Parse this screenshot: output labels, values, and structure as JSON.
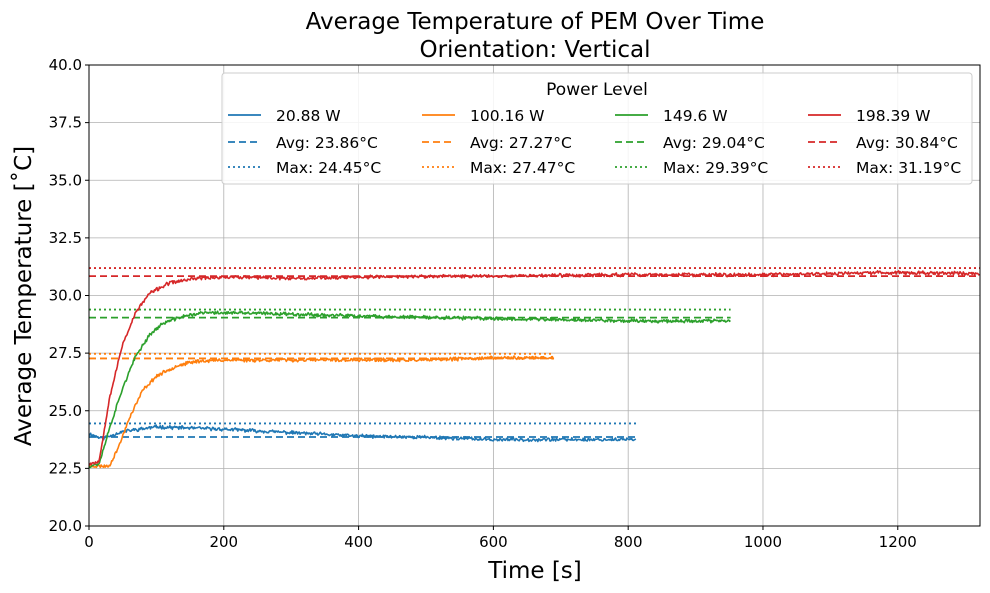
{
  "chart_data": {
    "type": "line",
    "title": "Average Temperature of PEM Over Time",
    "subtitle": "Orientation: Vertical",
    "xlabel": "Time [s]",
    "ylabel": "Average Temperature [˚C]",
    "xlim": [
      0,
      1322
    ],
    "ylim": [
      20.0,
      40.0
    ],
    "xticks": [
      0,
      200,
      400,
      600,
      800,
      1000,
      1200
    ],
    "xtick_labels": [
      "0",
      "200",
      "400",
      "600",
      "800",
      "1000",
      "1200"
    ],
    "yticks": [
      20.0,
      22.5,
      25.0,
      27.5,
      30.0,
      32.5,
      35.0,
      37.5,
      40.0
    ],
    "ytick_labels": [
      "20.0",
      "22.5",
      "25.0",
      "27.5",
      "30.0",
      "32.5",
      "35.0",
      "37.5",
      "40.0"
    ],
    "grid": true,
    "legend": {
      "title": "Power Level",
      "placement": "top-right",
      "columns": 4
    },
    "series": [
      {
        "name": "20.88 W",
        "color": "#1f77b4",
        "avg_label": "Avg: 23.86°C",
        "max_label": "Max: 24.45°C",
        "avg": 23.86,
        "max": 24.45,
        "end_time": 812,
        "noise": 0.06,
        "seed": 11,
        "curve": [
          [
            0,
            24.0
          ],
          [
            20,
            23.8
          ],
          [
            50,
            24.1
          ],
          [
            100,
            24.3
          ],
          [
            150,
            24.25
          ],
          [
            200,
            24.2
          ],
          [
            300,
            24.05
          ],
          [
            400,
            23.9
          ],
          [
            500,
            23.85
          ],
          [
            600,
            23.75
          ],
          [
            700,
            23.75
          ],
          [
            812,
            23.75
          ]
        ]
      },
      {
        "name": "100.16 W",
        "color": "#ff7f0e",
        "avg_label": "Avg: 27.27°C",
        "max_label": "Max: 27.47°C",
        "avg": 27.27,
        "max": 27.47,
        "end_time": 690,
        "noise": 0.06,
        "seed": 23,
        "curve": [
          [
            0,
            22.6
          ],
          [
            30,
            22.6
          ],
          [
            45,
            23.5
          ],
          [
            60,
            24.7
          ],
          [
            80,
            25.9
          ],
          [
            100,
            26.5
          ],
          [
            130,
            26.95
          ],
          [
            160,
            27.15
          ],
          [
            200,
            27.2
          ],
          [
            300,
            27.2
          ],
          [
            400,
            27.2
          ],
          [
            500,
            27.2
          ],
          [
            600,
            27.3
          ],
          [
            690,
            27.3
          ]
        ]
      },
      {
        "name": "149.6 W",
        "color": "#2ca02c",
        "avg_label": "Avg: 29.04°C",
        "max_label": "Max: 29.39°C",
        "avg": 29.04,
        "max": 29.39,
        "end_time": 952,
        "noise": 0.06,
        "seed": 37,
        "curve": [
          [
            0,
            22.6
          ],
          [
            15,
            22.7
          ],
          [
            30,
            24.2
          ],
          [
            50,
            26.0
          ],
          [
            70,
            27.4
          ],
          [
            90,
            28.3
          ],
          [
            110,
            28.8
          ],
          [
            140,
            29.1
          ],
          [
            170,
            29.25
          ],
          [
            200,
            29.25
          ],
          [
            300,
            29.2
          ],
          [
            400,
            29.1
          ],
          [
            500,
            29.05
          ],
          [
            600,
            29.0
          ],
          [
            700,
            28.95
          ],
          [
            800,
            28.9
          ],
          [
            952,
            28.9
          ]
        ]
      },
      {
        "name": "198.39 W",
        "color": "#d62728",
        "avg_label": "Avg: 30.84°C",
        "max_label": "Max: 31.19°C",
        "avg": 30.84,
        "max": 31.19,
        "end_time": 1322,
        "noise": 0.06,
        "seed": 53,
        "curve": [
          [
            0,
            22.7
          ],
          [
            15,
            22.8
          ],
          [
            30,
            25.5
          ],
          [
            50,
            27.9
          ],
          [
            70,
            29.3
          ],
          [
            90,
            30.1
          ],
          [
            120,
            30.55
          ],
          [
            160,
            30.75
          ],
          [
            200,
            30.8
          ],
          [
            300,
            30.75
          ],
          [
            400,
            30.8
          ],
          [
            600,
            30.85
          ],
          [
            800,
            30.9
          ],
          [
            1000,
            30.9
          ],
          [
            1200,
            31.0
          ],
          [
            1322,
            30.95
          ]
        ]
      }
    ]
  }
}
